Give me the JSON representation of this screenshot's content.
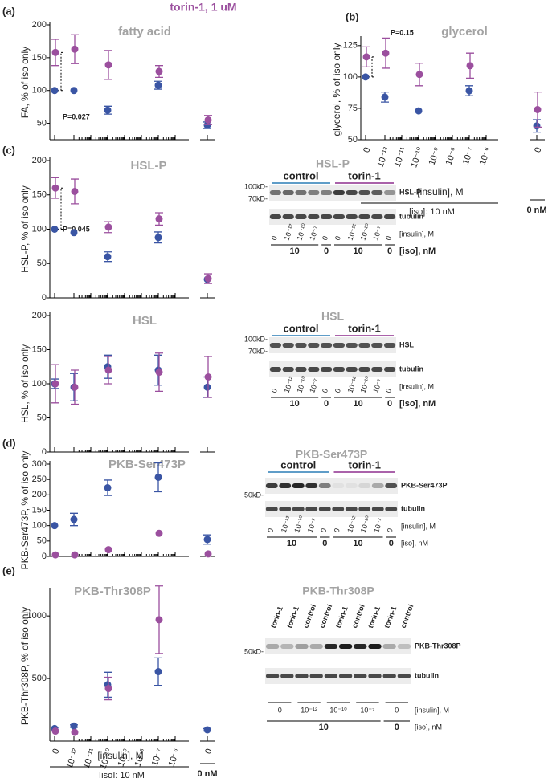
{
  "figure_title": "torin-1, 1 uM",
  "group_colors": {
    "control": "#2a7db5",
    "torin-1": "#8e2f8e"
  },
  "chart_data": [
    {
      "type": "dot",
      "panel_label": "(a)",
      "title": "fatty acid",
      "ylabel": "FA, % of iso only",
      "annotation": "P=0.027",
      "categories": [
        null,
        null,
        null,
        null,
        null,
        null,
        null,
        null,
        null
      ],
      "ylim": [
        25,
        200
      ],
      "yticks": [
        50,
        100,
        150,
        200
      ],
      "series": [
        {
          "color": "#3a55a4",
          "values": [
            100,
            100,
            null,
            70,
            null,
            null,
            108,
            null,
            47
          ],
          "errors": [
            null,
            null,
            null,
            6,
            null,
            null,
            6,
            null,
            5
          ]
        },
        {
          "color": "#9b4f9e",
          "values": [
            158,
            163,
            null,
            139,
            null,
            null,
            129,
            null,
            55
          ],
          "errors": [
            20,
            22,
            null,
            22,
            null,
            null,
            9,
            null,
            7
          ]
        }
      ]
    },
    {
      "type": "dot",
      "panel_label": "(b)",
      "title": "glycerol",
      "ylabel": "glycerol, % of iso only",
      "annotation": "P=0.15",
      "categories": [
        "0",
        "10⁻¹²",
        "10⁻¹¹",
        "10⁻¹⁰",
        "10⁻⁹",
        "10⁻⁸",
        "10⁻⁷",
        "10⁻⁶",
        "0"
      ],
      "xlabel": "[insulin], M",
      "iso_label": "[iso]: 10 nM",
      "sep_label": "0 nM",
      "ylim": [
        50,
        130
      ],
      "yticks": [
        50,
        75,
        100,
        125
      ],
      "series": [
        {
          "color": "#3a55a4",
          "values": [
            100,
            84,
            null,
            73,
            null,
            null,
            89,
            null,
            61
          ],
          "errors": [
            null,
            4,
            null,
            null,
            null,
            null,
            4,
            null,
            5
          ]
        },
        {
          "color": "#9b4f9e",
          "values": [
            116,
            119,
            null,
            102,
            null,
            null,
            109,
            null,
            74
          ],
          "errors": [
            8,
            12,
            null,
            9,
            null,
            null,
            10,
            null,
            14
          ]
        }
      ]
    },
    {
      "type": "dot",
      "panel_label": "(c)",
      "title": "HSL-P",
      "ylabel": "HSL-P, % of iso only",
      "annotation": "P=0.045",
      "categories": [
        null,
        null,
        null,
        null,
        null,
        null,
        null,
        null,
        null
      ],
      "ylim": [
        0,
        200
      ],
      "yticks": [
        0,
        50,
        100,
        150,
        200
      ],
      "series": [
        {
          "color": "#3a55a4",
          "values": [
            100,
            95,
            null,
            60,
            null,
            null,
            88,
            null,
            27
          ],
          "errors": [
            null,
            null,
            null,
            7,
            null,
            null,
            8,
            null,
            null
          ]
        },
        {
          "color": "#9b4f9e",
          "values": [
            160,
            155,
            null,
            103,
            null,
            null,
            115,
            null,
            28
          ],
          "errors": [
            15,
            18,
            null,
            8,
            null,
            null,
            9,
            null,
            7
          ]
        }
      ]
    },
    {
      "type": "dot",
      "title": "HSL",
      "ylabel": "HSL, % of iso only",
      "categories": [
        null,
        null,
        null,
        null,
        null,
        null,
        null,
        null,
        null
      ],
      "ylim": [
        0,
        200
      ],
      "yticks": [
        0,
        50,
        100,
        150,
        200
      ],
      "series": [
        {
          "color": "#3a55a4",
          "values": [
            100,
            95,
            null,
            125,
            null,
            null,
            120,
            null,
            95
          ],
          "errors": [
            7,
            20,
            null,
            17,
            null,
            null,
            22,
            null,
            15
          ]
        },
        {
          "color": "#9b4f9e",
          "values": [
            100,
            95,
            null,
            120,
            null,
            null,
            117,
            null,
            110
          ],
          "errors": [
            28,
            25,
            null,
            20,
            null,
            null,
            28,
            null,
            30
          ]
        }
      ]
    },
    {
      "type": "dot",
      "panel_label": "(d)",
      "title": "PKB-Ser473P",
      "ylabel": "PKB-Ser473P, % of iso only",
      "categories": [
        null,
        null,
        null,
        null,
        null,
        null,
        null,
        null,
        null
      ],
      "ylim": [
        0,
        300
      ],
      "yticks": [
        0,
        50,
        100,
        150,
        200,
        250,
        300
      ],
      "series": [
        {
          "color": "#3a55a4",
          "values": [
            100,
            120,
            null,
            223,
            null,
            null,
            257,
            null,
            55
          ],
          "errors": [
            null,
            20,
            null,
            25,
            null,
            null,
            47,
            null,
            15
          ]
        },
        {
          "color": "#9b4f9e",
          "values": [
            5,
            5,
            null,
            22,
            null,
            null,
            75,
            null,
            8
          ],
          "errors": [
            null,
            null,
            null,
            null,
            null,
            null,
            null,
            null,
            null
          ]
        }
      ]
    },
    {
      "type": "dot",
      "panel_label": "(e)",
      "title": "PKB-Thr308P",
      "ylabel": "PKB-Thr308P, % of iso only",
      "categories": [
        "0",
        "10⁻¹²",
        "10⁻¹¹",
        "10⁻¹⁰",
        "10⁻⁹",
        "10⁻⁸",
        "10⁻⁷",
        "10⁻⁶",
        "0"
      ],
      "xlabel": "[insulin], M",
      "iso_label": "[iso]: 10 nM",
      "sep_label": "0 nM",
      "ylim": [
        0,
        1200
      ],
      "yticks": [
        500,
        1000
      ],
      "series": [
        {
          "color": "#3a55a4",
          "values": [
            100,
            120,
            null,
            450,
            null,
            null,
            555,
            null,
            90
          ],
          "errors": [
            10,
            10,
            null,
            100,
            null,
            null,
            110,
            null,
            10
          ]
        },
        {
          "color": "#9b4f9e",
          "values": [
            80,
            70,
            null,
            420,
            null,
            null,
            970,
            null,
            null
          ],
          "errors": [
            null,
            null,
            null,
            90,
            null,
            null,
            270,
            null,
            null
          ]
        }
      ]
    }
  ],
  "blots": [
    {
      "title": "HSL-P",
      "groups": [
        "control",
        "torin-1"
      ],
      "markers": [
        "100kD-",
        "70kD-"
      ],
      "rows": [
        "HSL-P",
        "tubulin"
      ],
      "lanes": [
        "0",
        "10⁻¹²",
        "10⁻¹⁰",
        "10⁻⁷",
        "0",
        "0",
        "10⁻¹²",
        "10⁻¹⁰",
        "10⁻⁷",
        "0"
      ],
      "insulin_label": "[insulin], M",
      "iso": [
        "10",
        "0",
        "10",
        "0"
      ],
      "iso_label": "[iso], nM"
    },
    {
      "title": "HSL",
      "groups": [
        "control",
        "torin-1"
      ],
      "markers": [
        "100kD-",
        "70kD-"
      ],
      "rows": [
        "HSL",
        "tubulin"
      ],
      "lanes": [
        "0",
        "10⁻¹²",
        "10⁻¹⁰",
        "10⁻⁷",
        "0",
        "0",
        "10⁻¹²",
        "10⁻¹⁰",
        "10⁻⁷",
        "0"
      ],
      "insulin_label": "[insulin], M",
      "iso": [
        "10",
        "0",
        "10",
        "0"
      ],
      "iso_label": "[iso], nM"
    },
    {
      "title": "PKB-Ser473P",
      "groups": [
        "control",
        "torin-1"
      ],
      "markers": [
        "50kD-"
      ],
      "rows": [
        "PKB-Ser473P",
        "tubulin"
      ],
      "lanes": [
        "0",
        "10⁻¹²",
        "10⁻¹⁰",
        "10⁻⁷",
        "0",
        "0",
        "10⁻¹²",
        "10⁻¹⁰",
        "10⁻⁷",
        "0"
      ],
      "insulin_label": "[insulin], M",
      "iso": [
        "10",
        "0",
        "10",
        "0"
      ],
      "iso_label": "[iso], nM"
    },
    {
      "title": "PKB-Thr308P",
      "headers": [
        "torin-1",
        "torin-1",
        "control",
        "control",
        "torin-1",
        "control",
        "torin-1",
        "torin-1",
        "control"
      ],
      "markers": [
        "50kD-"
      ],
      "rows": [
        "PKB-Thr308P",
        "tubulin"
      ],
      "lanes": [
        "0",
        "10⁻¹²",
        "10⁻¹⁰",
        "10⁻⁷",
        "0"
      ],
      "insulin_label": "[insulin], M",
      "iso": [
        "10",
        "0"
      ],
      "iso_label": "[iso], nM"
    }
  ]
}
